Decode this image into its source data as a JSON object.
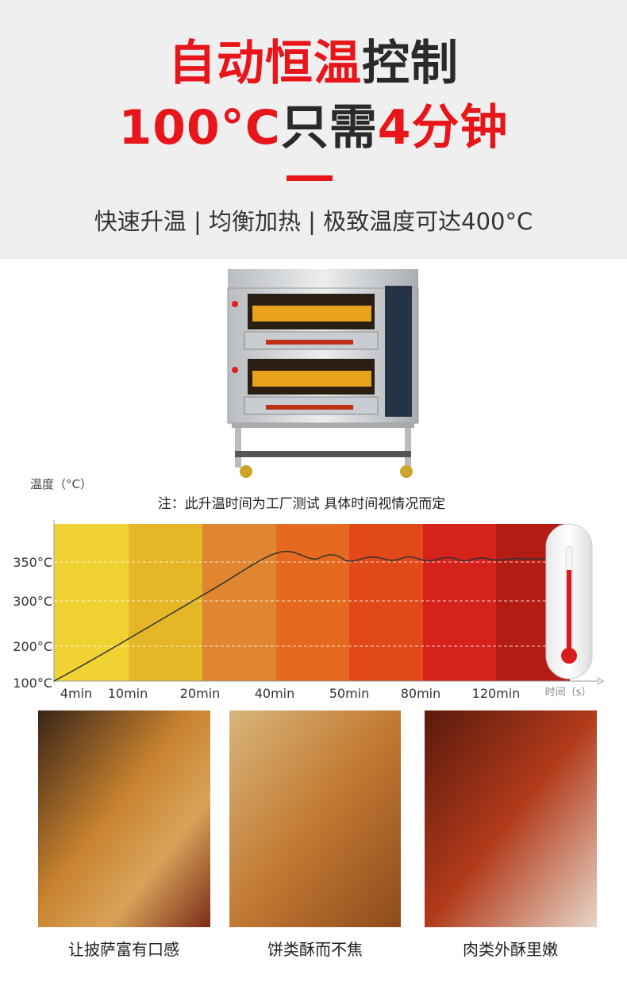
{
  "header": {
    "title_lines": [
      [
        {
          "text": "自动恒温",
          "color": "#e8151b"
        },
        {
          "text": "控制",
          "color": "#2a2a2a"
        }
      ],
      [
        {
          "text": "100°C",
          "color": "#e8151b"
        },
        {
          "text": "只需",
          "color": "#2a2a2a"
        },
        {
          "text": "4分钟",
          "color": "#e8151b"
        }
      ]
    ],
    "subtitle": "快速升温 | 均衡加热 | 极致温度可达400°C"
  },
  "temperature_chart": {
    "y_axis_label": "温度（°C）",
    "note": "注：此升温时间为工厂测试  具体时间视情况而定",
    "y_ticks": [
      "350°C",
      "300°C",
      "200°C",
      "100°C"
    ],
    "x_ticks": [
      "4min",
      "10min",
      "20min",
      "40min",
      "50min",
      "80min",
      "120min"
    ],
    "x_axis_label": "时间（s）"
  },
  "features": [
    {
      "caption": "让披萨富有口感"
    },
    {
      "caption": "饼类酥而不焦"
    },
    {
      "caption": "肉类外酥里嫩"
    }
  ]
}
